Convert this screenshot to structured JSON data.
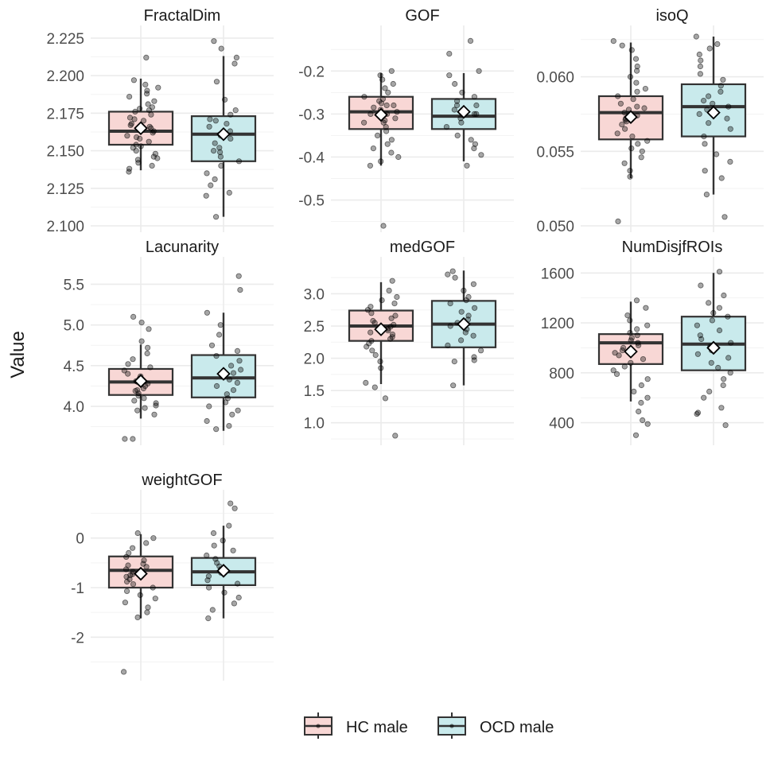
{
  "chart_data": {
    "type": "box",
    "ylabel": "Value",
    "groups": [
      "HC male",
      "OCD male"
    ],
    "colors": {
      "HC male": "#f8d7d5",
      "OCD male": "#c9eaec",
      "box_stroke": "#333333",
      "point": "#000000",
      "mean_marker": "#ffffff"
    },
    "legend_position": "bottom",
    "grid": true,
    "panels": [
      {
        "title": "FractalDim",
        "ticks": [
          2.1,
          2.125,
          2.15,
          2.175,
          2.2,
          2.225
        ],
        "tick_labels": [
          "2.100",
          "2.125",
          "2.150",
          "2.175",
          "2.200",
          "2.225"
        ],
        "ylim": [
          2.1,
          2.226
        ],
        "boxes": [
          {
            "group": "HC male",
            "min": 2.137,
            "q1": 2.154,
            "median": 2.163,
            "q3": 2.176,
            "max": 2.198,
            "mean": 2.165,
            "points": [
              2.212,
              2.197,
              2.194,
              2.192,
              2.19,
              2.188,
              2.186,
              2.183,
              2.181,
              2.179,
              2.177,
              2.176,
              2.174,
              2.172,
              2.17,
              2.168,
              2.167,
              2.165,
              2.163,
              2.162,
              2.16,
              2.158,
              2.156,
              2.154,
              2.152,
              2.15,
              2.148,
              2.146,
              2.144,
              2.142,
              2.14,
              2.138,
              2.136,
              2.171,
              2.159,
              2.153,
              2.145,
              2.178,
              2.166
            ]
          },
          {
            "group": "OCD male",
            "min": 2.106,
            "q1": 2.143,
            "median": 2.161,
            "q3": 2.173,
            "max": 2.213,
            "mean": 2.161,
            "points": [
              2.223,
              2.218,
              2.212,
              2.208,
              2.196,
              2.184,
              2.177,
              2.174,
              2.171,
              2.168,
              2.166,
              2.163,
              2.161,
              2.158,
              2.155,
              2.152,
              2.149,
              2.146,
              2.143,
              2.14,
              2.135,
              2.131,
              2.127,
              2.122,
              2.12,
              2.106,
              2.17,
              2.16,
              2.15
            ]
          }
        ]
      },
      {
        "title": "GOF",
        "ticks": [
          -0.5,
          -0.4,
          -0.3,
          -0.2
        ],
        "tick_labels": [
          "-0.5",
          "-0.4",
          "-0.3",
          "-0.2"
        ],
        "ylim": [
          -0.56,
          -0.12
        ],
        "boxes": [
          {
            "group": "HC male",
            "min": -0.42,
            "q1": -0.335,
            "median": -0.295,
            "q3": -0.26,
            "max": -0.205,
            "mean": -0.302,
            "points": [
              -0.2,
              -0.21,
              -0.22,
              -0.23,
              -0.24,
              -0.25,
              -0.26,
              -0.265,
              -0.27,
              -0.275,
              -0.28,
              -0.285,
              -0.29,
              -0.295,
              -0.3,
              -0.305,
              -0.31,
              -0.315,
              -0.32,
              -0.33,
              -0.34,
              -0.35,
              -0.36,
              -0.37,
              -0.38,
              -0.39,
              -0.4,
              -0.41,
              -0.42,
              -0.56,
              -0.3,
              -0.28,
              -0.32
            ]
          },
          {
            "group": "OCD male",
            "min": -0.41,
            "q1": -0.335,
            "median": -0.305,
            "q3": -0.265,
            "max": -0.205,
            "mean": -0.295,
            "points": [
              -0.13,
              -0.16,
              -0.2,
              -0.21,
              -0.23,
              -0.25,
              -0.26,
              -0.27,
              -0.28,
              -0.29,
              -0.3,
              -0.31,
              -0.32,
              -0.33,
              -0.35,
              -0.36,
              -0.37,
              -0.38,
              -0.395,
              -0.42,
              -0.3,
              -0.28
            ]
          }
        ]
      },
      {
        "title": "isoQ",
        "ticks": [
          0.05,
          0.055,
          0.06
        ],
        "tick_labels": [
          "0.050",
          "0.055",
          "0.060"
        ],
        "ylim": [
          0.05,
          0.0627
        ],
        "boxes": [
          {
            "group": "HC male",
            "min": 0.0532,
            "q1": 0.0558,
            "median": 0.0576,
            "q3": 0.0587,
            "max": 0.0623,
            "mean": 0.0573,
            "points": [
              0.0624,
              0.0621,
              0.0618,
              0.0612,
              0.0607,
              0.0604,
              0.06,
              0.0596,
              0.0592,
              0.059,
              0.0587,
              0.0585,
              0.0582,
              0.058,
              0.0578,
              0.0576,
              0.0574,
              0.0572,
              0.057,
              0.0568,
              0.0565,
              0.0562,
              0.056,
              0.0557,
              0.0555,
              0.0552,
              0.055,
              0.0546,
              0.0542,
              0.0537,
              0.0533,
              0.0503,
              0.0579,
              0.0571
            ]
          },
          {
            "group": "OCD male",
            "min": 0.0521,
            "q1": 0.056,
            "median": 0.058,
            "q3": 0.0595,
            "max": 0.0627,
            "mean": 0.0576,
            "points": [
              0.0627,
              0.0622,
              0.0619,
              0.0615,
              0.0611,
              0.0607,
              0.0602,
              0.0598,
              0.0594,
              0.059,
              0.0587,
              0.0584,
              0.0582,
              0.058,
              0.0578,
              0.0575,
              0.0572,
              0.0569,
              0.0565,
              0.056,
              0.0555,
              0.0548,
              0.0543,
              0.0537,
              0.0532,
              0.0521,
              0.0506
            ]
          }
        ]
      },
      {
        "title": "Lacunarity",
        "ticks": [
          4.0,
          4.5,
          5.0,
          5.5
        ],
        "tick_labels": [
          "4.0",
          "4.5",
          "5.0",
          "5.5"
        ],
        "ylim": [
          3.6,
          5.7
        ],
        "boxes": [
          {
            "group": "HC male",
            "min": 3.85,
            "q1": 4.14,
            "median": 4.3,
            "q3": 4.46,
            "max": 4.76,
            "mean": 4.31,
            "points": [
              5.1,
              5.03,
              4.95,
              4.8,
              4.72,
              4.65,
              4.58,
              4.52,
              4.48,
              4.44,
              4.4,
              4.37,
              4.34,
              4.31,
              4.28,
              4.25,
              4.22,
              4.19,
              4.16,
              4.13,
              4.1,
              4.07,
              4.04,
              4.01,
              3.98,
              3.95,
              3.9,
              3.6,
              3.6,
              4.3,
              4.2
            ]
          },
          {
            "group": "OCD male",
            "min": 3.7,
            "q1": 4.11,
            "median": 4.35,
            "q3": 4.63,
            "max": 5.15,
            "mean": 4.4,
            "points": [
              5.6,
              5.43,
              5.15,
              5.0,
              4.88,
              4.75,
              4.68,
              4.62,
              4.56,
              4.5,
              4.45,
              4.41,
              4.37,
              4.33,
              4.29,
              4.25,
              4.2,
              4.15,
              4.1,
              4.05,
              4.0,
              3.95,
              3.9,
              3.82,
              3.76,
              3.72
            ]
          }
        ]
      },
      {
        "title": "medGOF",
        "ticks": [
          1.0,
          1.5,
          2.0,
          2.5,
          3.0
        ],
        "tick_labels": [
          "1.0",
          "1.5",
          "2.0",
          "2.5",
          "3.0"
        ],
        "ylim": [
          0.75,
          3.4
        ],
        "boxes": [
          {
            "group": "HC male",
            "min": 1.6,
            "q1": 2.27,
            "median": 2.5,
            "q3": 2.74,
            "max": 3.18,
            "mean": 2.45,
            "points": [
              3.2,
              3.05,
              2.95,
              2.9,
              2.85,
              2.8,
              2.75,
              2.7,
              2.66,
              2.62,
              2.58,
              2.55,
              2.52,
              2.49,
              2.46,
              2.43,
              2.4,
              2.37,
              2.33,
              2.3,
              2.27,
              2.23,
              2.18,
              2.12,
              2.05,
              1.95,
              1.85,
              1.62,
              1.55,
              1.38,
              0.8
            ]
          },
          {
            "group": "OCD male",
            "min": 1.58,
            "q1": 2.17,
            "median": 2.53,
            "q3": 2.89,
            "max": 3.36,
            "mean": 2.53,
            "points": [
              3.35,
              3.3,
              3.25,
              3.15,
              3.05,
              2.95,
              2.9,
              2.85,
              2.78,
              2.72,
              2.66,
              2.6,
              2.55,
              2.5,
              2.45,
              2.4,
              2.35,
              2.28,
              2.2,
              2.12,
              2.02,
              1.97,
              1.95,
              1.58
            ]
          }
        ]
      },
      {
        "title": "NumDisjfROIs",
        "ticks": [
          400,
          800,
          1200,
          1600
        ],
        "tick_labels": [
          "400",
          "800",
          "1200",
          "1600"
        ],
        "ylim": [
          270,
          1640
        ],
        "boxes": [
          {
            "group": "HC male",
            "min": 570,
            "q1": 870,
            "median": 1040,
            "q3": 1110,
            "max": 1370,
            "mean": 970,
            "points": [
              1380,
              1320,
              1260,
              1220,
              1180,
              1150,
              1120,
              1100,
              1080,
              1060,
              1040,
              1020,
              1000,
              980,
              960,
              940,
              910,
              880,
              850,
              820,
              790,
              750,
              700,
              650,
              600,
              560,
              490,
              420,
              390,
              300
            ]
          },
          {
            "group": "OCD male",
            "min": 820,
            "q1": 820,
            "median": 1030,
            "q3": 1250,
            "max": 1600,
            "mean": 1000,
            "points": [
              1610,
              1500,
              1420,
              1360,
              1320,
              1280,
              1250,
              1220,
              1180,
              1140,
              1100,
              1070,
              1040,
              1010,
              980,
              950,
              920,
              880,
              840,
              800,
              750,
              700,
              650,
              600,
              520,
              480,
              470,
              380
            ]
          }
        ]
      },
      {
        "title": "weightGOF",
        "ticks": [
          -2,
          -1,
          0
        ],
        "tick_labels": [
          "-2",
          "-1",
          "0"
        ],
        "ylim": [
          -2.75,
          0.75
        ],
        "boxes": [
          {
            "group": "HC male",
            "min": -1.62,
            "q1": -1.0,
            "median": -0.65,
            "q3": -0.37,
            "max": 0.08,
            "mean": -0.72,
            "points": [
              0.1,
              0.0,
              -0.1,
              -0.2,
              -0.3,
              -0.38,
              -0.45,
              -0.52,
              -0.58,
              -0.63,
              -0.68,
              -0.73,
              -0.78,
              -0.83,
              -0.88,
              -0.93,
              -1.0,
              -1.07,
              -1.15,
              -1.22,
              -1.3,
              -1.4,
              -1.5,
              -1.6,
              -2.7,
              -0.55,
              -0.75
            ]
          },
          {
            "group": "OCD male",
            "min": -1.62,
            "q1": -0.95,
            "median": -0.68,
            "q3": -0.4,
            "max": 0.25,
            "mean": -0.66,
            "points": [
              0.7,
              0.6,
              0.25,
              0.1,
              -0.05,
              -0.15,
              -0.25,
              -0.35,
              -0.42,
              -0.5,
              -0.57,
              -0.63,
              -0.7,
              -0.77,
              -0.85,
              -0.92,
              -1.0,
              -1.1,
              -1.2,
              -1.32,
              -1.45,
              -1.62
            ]
          }
        ]
      }
    ]
  }
}
